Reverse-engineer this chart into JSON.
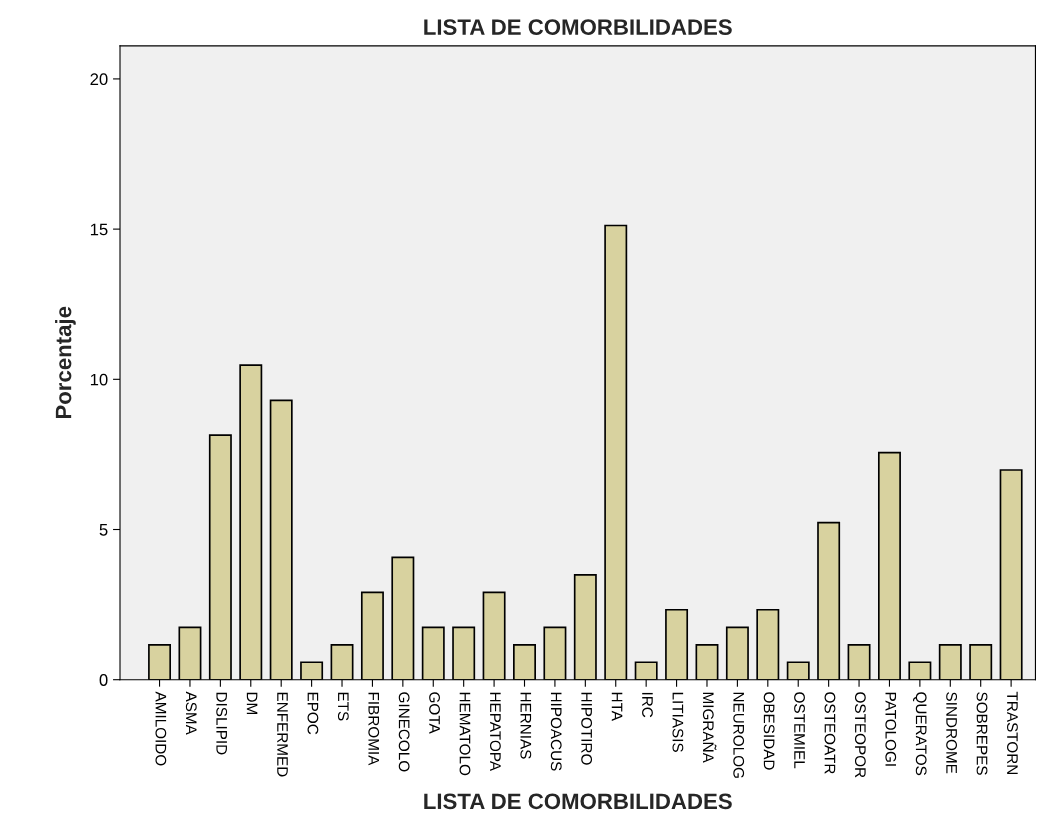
{
  "chart_data": {
    "type": "bar",
    "title": "LISTA DE COMORBILIDADES",
    "xlabel": "LISTA DE COMORBILIDADES",
    "ylabel": "Porcentaje",
    "categories": [
      "AMILOIDO",
      "ASMA",
      "DISLIPID",
      "DM",
      "ENFERMED",
      "EPOC",
      "ETS",
      "FIBROMIA",
      "GINECOLO",
      "GOTA",
      "HEMATOLO",
      "HEPATOPA",
      "HERNIAS",
      "HIPOACUS",
      "HIPOTIRO",
      "HTA",
      "IRC",
      "LITIASIS",
      "MIGRAÑA",
      "NEUROLOG",
      "OBESIDAD",
      "OSTEMIEL",
      "OSTEOATR",
      "OSTEOPOR",
      "PATOLOGI",
      "QUERATOS",
      "SINDROME",
      "SOBREPES",
      "TRASTORN"
    ],
    "values": [
      1.16,
      1.74,
      8.14,
      10.47,
      9.3,
      0.58,
      1.16,
      2.91,
      4.07,
      1.74,
      1.74,
      2.91,
      1.16,
      1.74,
      3.49,
      15.12,
      0.58,
      2.33,
      1.16,
      1.74,
      2.33,
      0.58,
      5.23,
      1.16,
      7.56,
      0.58,
      1.16,
      1.16,
      6.98
    ],
    "color": "#d8d29f",
    "ylim": [
      0,
      21.1
    ],
    "yticks": [
      0,
      5,
      10,
      15,
      20
    ],
    "grid": false
  }
}
